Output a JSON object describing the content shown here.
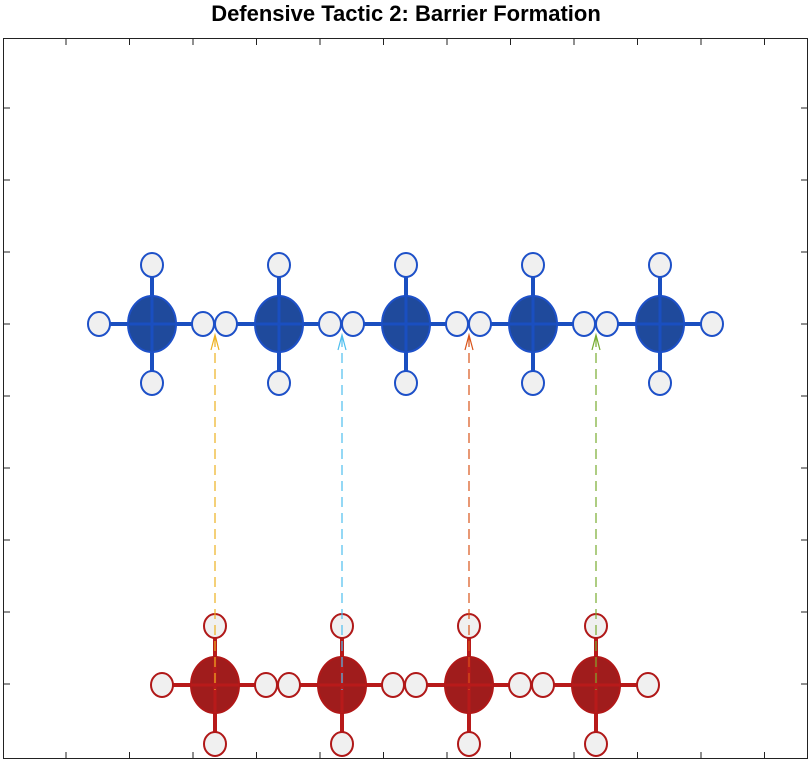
{
  "title": "Defensive Tactic 2: Barrier Formation"
}
